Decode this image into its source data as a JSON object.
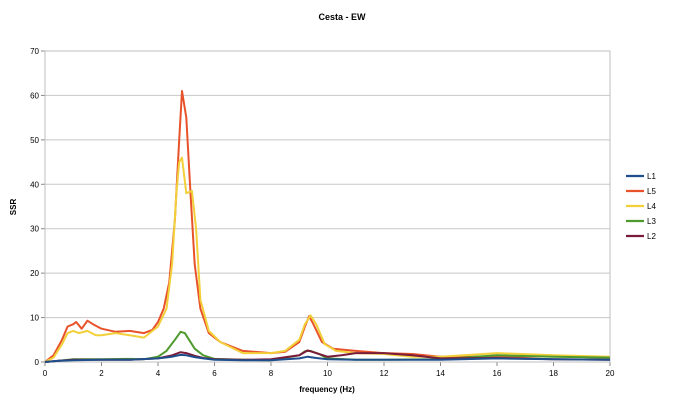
{
  "chart_data": {
    "type": "line",
    "title": "Cesta - EW",
    "xlabel": "frequency (Hz)",
    "ylabel": "SSR",
    "xlim": [
      0,
      20
    ],
    "ylim": [
      0,
      70
    ],
    "xticks": [
      0,
      2,
      4,
      6,
      8,
      10,
      12,
      14,
      16,
      18,
      20
    ],
    "yticks": [
      0,
      10,
      20,
      30,
      40,
      50,
      60,
      70
    ],
    "grid": "horizontal",
    "legend_position": "right",
    "series": [
      {
        "name": "L1",
        "color": "#1f4e8c",
        "x": [
          0,
          0.5,
          1,
          2,
          3,
          4,
          4.5,
          4.8,
          5.0,
          5.3,
          5.6,
          6,
          7,
          8,
          9,
          9.3,
          9.6,
          10,
          11,
          12,
          14,
          16,
          18,
          20
        ],
        "y": [
          0,
          0.3,
          0.4,
          0.5,
          0.5,
          0.8,
          1.2,
          1.6,
          1.5,
          1.1,
          0.8,
          0.5,
          0.4,
          0.4,
          0.8,
          1.2,
          0.9,
          0.6,
          0.5,
          0.5,
          0.5,
          0.8,
          0.6,
          0.5
        ]
      },
      {
        "name": "L5",
        "color": "#e8522a",
        "x": [
          0,
          0.3,
          0.6,
          0.8,
          1.0,
          1.1,
          1.3,
          1.5,
          1.7,
          2,
          2.5,
          3,
          3.5,
          3.8,
          4.0,
          4.2,
          4.4,
          4.6,
          4.75,
          4.85,
          5.0,
          5.15,
          5.3,
          5.5,
          5.8,
          6.2,
          7,
          8,
          8.5,
          9,
          9.2,
          9.35,
          9.5,
          9.8,
          10.2,
          11,
          12,
          13,
          14,
          16,
          18,
          20
        ],
        "y": [
          0,
          1.5,
          5,
          8,
          8.5,
          9,
          7.5,
          9.3,
          8.5,
          7.5,
          6.8,
          7,
          6.5,
          7.2,
          9,
          12,
          18,
          32,
          50,
          61,
          55,
          38,
          22,
          12,
          6.5,
          4.5,
          2.5,
          2,
          2.3,
          4.5,
          8,
          10.3,
          8.5,
          4.5,
          3,
          2.5,
          2,
          1.8,
          1.2,
          1.2,
          1.3,
          1
        ]
      },
      {
        "name": "L4",
        "color": "#f2d03a",
        "x": [
          0,
          0.3,
          0.6,
          0.8,
          1.0,
          1.2,
          1.5,
          1.8,
          2,
          2.5,
          3,
          3.5,
          4.0,
          4.3,
          4.5,
          4.65,
          4.75,
          4.85,
          5.0,
          5.2,
          5.35,
          5.5,
          5.8,
          6.2,
          7,
          8,
          8.5,
          9,
          9.2,
          9.4,
          9.6,
          9.9,
          10.3,
          11,
          12,
          13,
          14,
          16,
          18,
          20
        ],
        "y": [
          0,
          1,
          4,
          6.5,
          7,
          6.5,
          7,
          6,
          6,
          6.5,
          6,
          5.5,
          8,
          12,
          22,
          38,
          45,
          46,
          38,
          38.5,
          30,
          14,
          7,
          4.5,
          2,
          2,
          2.5,
          5,
          8.5,
          10.5,
          8.5,
          4,
          2.5,
          2,
          1.8,
          1.2,
          1.2,
          2,
          1.5,
          1.2
        ]
      },
      {
        "name": "L3",
        "color": "#4e9a2e",
        "x": [
          0,
          0.5,
          1,
          2,
          3,
          3.5,
          4,
          4.3,
          4.6,
          4.8,
          4.95,
          5.1,
          5.3,
          5.6,
          6,
          7,
          8,
          9,
          9.2,
          9.4,
          9.7,
          10,
          11,
          12,
          14,
          16,
          18,
          20
        ],
        "y": [
          0,
          0.3,
          0.6,
          0.6,
          0.7,
          0.6,
          1.2,
          2.5,
          5,
          6.8,
          6.5,
          5,
          3,
          1.5,
          0.7,
          0.5,
          0.4,
          1.5,
          2.4,
          2.5,
          1.8,
          0.8,
          0.5,
          0.5,
          0.6,
          1.5,
          1.2,
          1
        ]
      },
      {
        "name": "L2",
        "color": "#7a1b3a",
        "x": [
          0,
          0.5,
          1,
          2,
          3,
          4,
          4.5,
          4.8,
          5.0,
          5.3,
          5.6,
          6,
          7,
          8,
          9,
          9.3,
          9.6,
          10,
          10.5,
          11,
          12,
          13,
          14,
          16,
          18,
          20
        ],
        "y": [
          0,
          0.3,
          0.5,
          0.5,
          0.5,
          0.8,
          1.5,
          2.2,
          2.0,
          1.4,
          0.9,
          0.6,
          0.5,
          0.6,
          1.5,
          2.6,
          2,
          1.2,
          1.5,
          2,
          2,
          1.5,
          0.8,
          0.9,
          0.6,
          0.5
        ]
      }
    ]
  }
}
